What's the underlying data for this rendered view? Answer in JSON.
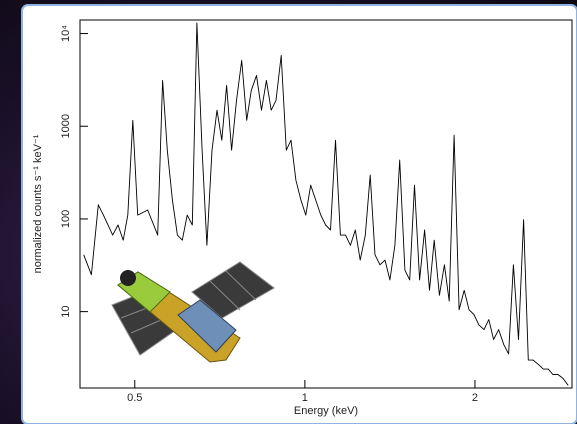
{
  "chart_data": {
    "type": "line",
    "xlabel": "Energy (keV)",
    "ylabel": "normalized counts s⁻¹ keV⁻¹",
    "log_x": true,
    "log_y": true,
    "color": "#000000",
    "xlim": [
      0.4,
      2.97
    ],
    "ylim": [
      1.5,
      14000
    ],
    "xticks": [
      0.5,
      1,
      2
    ],
    "yticks": [
      10,
      100,
      1000,
      {
        "value": 10000,
        "label": "10⁴"
      }
    ],
    "x": [
      0.406,
      0.419,
      0.431,
      0.44,
      0.457,
      0.467,
      0.477,
      0.486,
      0.496,
      0.506,
      0.527,
      0.549,
      0.56,
      0.571,
      0.583,
      0.595,
      0.607,
      0.619,
      0.632,
      0.644,
      0.658,
      0.671,
      0.685,
      0.699,
      0.713,
      0.727,
      0.742,
      0.757,
      0.773,
      0.789,
      0.804,
      0.821,
      0.838,
      0.855,
      0.872,
      0.889,
      0.908,
      0.927,
      0.945,
      0.964,
      0.984,
      1.004,
      1.024,
      1.045,
      1.067,
      1.088,
      1.11,
      1.133,
      1.156,
      1.18,
      1.204,
      1.228,
      1.253,
      1.279,
      1.305,
      1.331,
      1.358,
      1.386,
      1.414,
      1.443,
      1.472,
      1.503,
      1.533,
      1.563,
      1.596,
      1.629,
      1.662,
      1.694,
      1.73,
      1.766,
      1.801,
      1.837,
      1.875,
      1.914,
      1.952,
      1.991,
      2.032,
      2.075,
      2.116,
      2.158,
      2.203,
      2.249,
      2.294,
      2.339,
      2.388,
      2.438,
      2.486,
      2.535,
      2.588,
      2.642,
      2.695,
      2.748,
      2.805,
      2.864,
      2.924
    ],
    "values": [
      41,
      25,
      142,
      110,
      67,
      86,
      59,
      110,
      1160,
      110,
      125,
      67,
      3120,
      552,
      160,
      67,
      59,
      110,
      86,
      13000,
      552,
      52,
      552,
      1490,
      707,
      2760,
      552,
      1900,
      5130,
      1160,
      2440,
      3530,
      1490,
      3120,
      1490,
      1900,
      5800,
      552,
      707,
      262,
      160,
      110,
      232,
      160,
      110,
      86,
      76,
      707,
      67,
      67,
      52,
      76,
      36,
      67,
      297,
      41,
      32,
      36,
      22,
      52,
      431,
      28,
      22,
      232,
      22,
      76,
      17,
      59,
      15,
      32,
      13,
      800,
      10.5,
      17,
      10.5,
      9.3,
      7.2,
      6.4,
      8.2,
      5.0,
      6.4,
      4.4,
      3.5,
      32,
      5.0,
      98,
      3.0,
      3.0,
      2.7,
      2.4,
      2.4,
      2.1,
      2.1,
      1.9,
      1.6
    ]
  }
}
